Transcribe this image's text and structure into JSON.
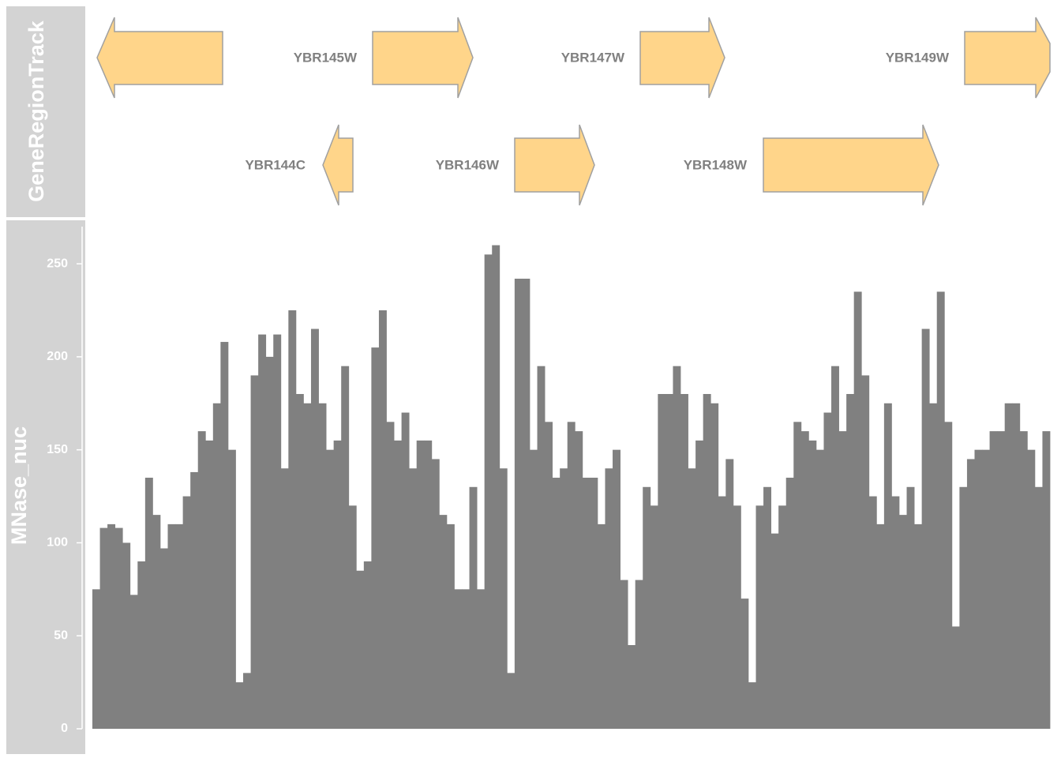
{
  "gene_track": {
    "title": "GeneRegionTrack",
    "genes": [
      {
        "label": "YBR145W"
      },
      {
        "label": "YBR147W"
      },
      {
        "label": "YBR149W"
      },
      {
        "label": "YBR144C"
      },
      {
        "label": "YBR146W"
      },
      {
        "label": "YBR148W"
      }
    ]
  },
  "chart_data": {
    "type": "histogram",
    "ylabel": "MNase_nuc",
    "color": "#808080",
    "ylim": [
      0,
      270
    ],
    "yticks": [
      0,
      50,
      100,
      150,
      200,
      250
    ],
    "values": [
      75,
      108,
      110,
      108,
      100,
      72,
      90,
      135,
      115,
      97,
      110,
      110,
      125,
      138,
      160,
      155,
      175,
      208,
      150,
      25,
      30,
      190,
      212,
      200,
      212,
      140,
      225,
      180,
      175,
      215,
      175,
      150,
      155,
      195,
      120,
      85,
      90,
      205,
      225,
      165,
      155,
      170,
      140,
      155,
      155,
      145,
      115,
      110,
      75,
      75,
      130,
      75,
      255,
      260,
      140,
      30,
      242,
      242,
      150,
      195,
      165,
      135,
      140,
      165,
      160,
      135,
      135,
      110,
      140,
      150,
      80,
      45,
      80,
      130,
      120,
      180,
      180,
      195,
      180,
      140,
      155,
      180,
      175,
      125,
      145,
      120,
      70,
      25,
      120,
      130,
      105,
      120,
      135,
      165,
      160,
      155,
      150,
      170,
      195,
      160,
      180,
      235,
      190,
      125,
      110,
      175,
      125,
      115,
      130,
      110,
      215,
      175,
      235,
      165,
      55,
      130,
      145,
      150,
      150,
      160,
      160,
      175,
      175,
      160,
      150,
      130,
      160
    ]
  }
}
